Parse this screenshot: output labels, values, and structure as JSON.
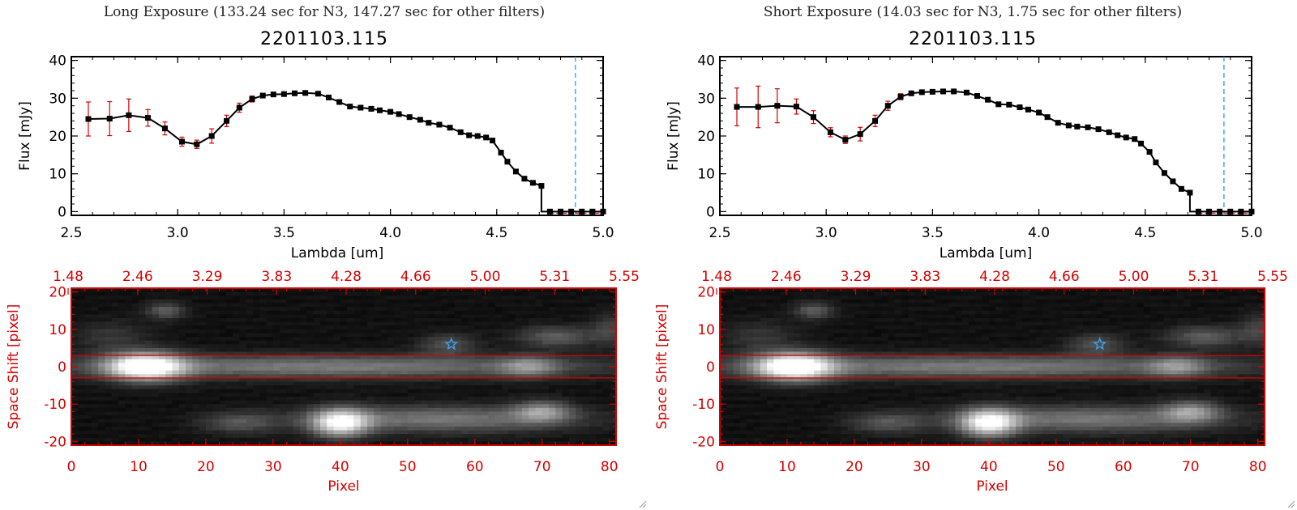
{
  "panels": [
    {
      "title": "Long Exposure (133.24 sec for N3, 147.27 sec for other filters)",
      "object_id": "2201103.115"
    },
    {
      "title": "Short Exposure (14.03 sec for N3, 1.75 sec for other filters)",
      "object_id": "2201103.115"
    }
  ],
  "colors": {
    "spectrum_line": "#000000",
    "error_bar": "#d40000",
    "marker": "#000000",
    "dashed_line": "#3aa0f0",
    "image_axes": "#d40000",
    "star_marker": "#3aa0f0"
  },
  "chart_data": [
    {
      "type": "line",
      "title": "2201103.115",
      "xlabel": "Lambda [um]",
      "ylabel": "Flux [mJy]",
      "xlim": [
        2.5,
        5.0
      ],
      "ylim": [
        -1,
        41
      ],
      "x_ticks": [
        "2.5",
        "3.0",
        "3.5",
        "4.0",
        "4.5",
        "5.0"
      ],
      "y_ticks": [
        "0",
        "10",
        "20",
        "30",
        "40"
      ],
      "vline_x": 4.87,
      "series": [
        {
          "x": [
            2.58,
            2.68,
            2.77,
            2.86,
            2.94,
            3.02,
            3.09,
            3.16,
            3.23,
            3.29,
            3.35,
            3.4,
            3.45,
            3.5,
            3.55,
            3.6,
            3.66,
            3.71,
            3.76,
            3.81,
            3.86,
            3.91,
            3.95,
            4.0,
            4.04,
            4.09,
            4.14,
            4.18,
            4.23,
            4.28,
            4.33,
            4.37,
            4.41,
            4.45,
            4.48,
            4.52,
            4.55,
            4.59,
            4.63,
            4.67,
            4.71,
            4.75,
            4.8,
            4.85,
            4.9,
            4.95,
            5.0
          ],
          "y": [
            24.5,
            24.6,
            25.5,
            24.8,
            22.0,
            18.5,
            17.8,
            20.0,
            24.0,
            27.5,
            29.8,
            30.7,
            31.0,
            31.1,
            31.3,
            31.4,
            31.2,
            30.2,
            29.0,
            27.8,
            27.5,
            27.2,
            26.8,
            26.4,
            25.8,
            25.0,
            24.3,
            23.5,
            23.0,
            22.2,
            21.0,
            20.2,
            20.0,
            19.6,
            18.8,
            15.6,
            13.2,
            10.6,
            8.7,
            7.6,
            6.8,
            0,
            0,
            0,
            0,
            0,
            0
          ],
          "err": [
            4.5,
            4.5,
            4.3,
            2.2,
            1.7,
            1.2,
            1.1,
            1.9,
            1.5,
            1.2,
            0.8,
            0.5,
            0.4,
            0.4,
            0.4,
            0.4,
            0.4,
            0.4,
            0.4,
            0.4,
            0.4,
            0.4,
            0.4,
            0.4,
            0.4,
            0.4,
            0.4,
            0.4,
            0.4,
            0.4,
            0.4,
            0.4,
            0.4,
            0.4,
            0.4,
            0.4,
            0.4,
            0.4,
            0.4,
            0.4,
            0.4,
            0.3,
            0.3,
            0.3,
            0.3,
            0.3,
            0.3
          ]
        }
      ]
    },
    {
      "type": "heatmap",
      "xlabel": "Pixel",
      "ylabel": "Space Shift [pixel]",
      "xlim": [
        0,
        81
      ],
      "ylim": [
        -21,
        21
      ],
      "x_ticks": [
        "0",
        "10",
        "20",
        "30",
        "40",
        "50",
        "60",
        "70",
        "80"
      ],
      "y_ticks": [
        "-20",
        "-10",
        "0",
        "10",
        "20"
      ],
      "top_axis_ticks": [
        "1.48",
        "2.46",
        "3.29",
        "3.83",
        "4.28",
        "4.66",
        "5.00",
        "5.31",
        "5.55"
      ],
      "aperture_y": [
        -3,
        3
      ],
      "star_position": [
        56.5,
        6
      ],
      "sources": [
        {
          "x": 11,
          "y": 0,
          "sx": 4,
          "sy": 2.6,
          "amp": 1.0
        },
        {
          "x": 38,
          "y": 0,
          "sx": 28,
          "sy": 2.2,
          "amp": 0.42
        },
        {
          "x": 40,
          "y": -15,
          "sx": 3,
          "sy": 2.6,
          "amp": 0.85
        },
        {
          "x": 55,
          "y": -14,
          "sx": 14,
          "sy": 2.5,
          "amp": 0.4
        },
        {
          "x": 70,
          "y": -12,
          "sx": 3,
          "sy": 2,
          "amp": 0.45
        },
        {
          "x": 68,
          "y": 0,
          "sx": 3,
          "sy": 2,
          "amp": 0.35
        },
        {
          "x": 14,
          "y": 15,
          "sx": 2,
          "sy": 1.6,
          "amp": 0.3
        },
        {
          "x": 72,
          "y": 8,
          "sx": 4,
          "sy": 2,
          "amp": 0.3
        },
        {
          "x": 56,
          "y": 6,
          "sx": 3,
          "sy": 2,
          "amp": 0.25
        },
        {
          "x": 25,
          "y": -15,
          "sx": 4,
          "sy": 2,
          "amp": 0.25
        },
        {
          "x": 6,
          "y": 8,
          "sx": 4,
          "sy": 3,
          "amp": 0.15
        },
        {
          "x": 80,
          "y": 10,
          "sx": 2,
          "sy": 3,
          "amp": 0.2
        }
      ]
    },
    {
      "type": "line",
      "title": "2201103.115",
      "xlabel": "Lambda [um]",
      "ylabel": "Flux [mJy]",
      "xlim": [
        2.5,
        5.0
      ],
      "ylim": [
        -1,
        41
      ],
      "x_ticks": [
        "2.5",
        "3.0",
        "3.5",
        "4.0",
        "4.5",
        "5.0"
      ],
      "y_ticks": [
        "0",
        "10",
        "20",
        "30",
        "40"
      ],
      "vline_x": 4.87,
      "series": [
        {
          "x": [
            2.58,
            2.68,
            2.77,
            2.86,
            2.94,
            3.02,
            3.09,
            3.16,
            3.23,
            3.29,
            3.35,
            3.4,
            3.45,
            3.5,
            3.55,
            3.6,
            3.66,
            3.71,
            3.76,
            3.81,
            3.86,
            3.91,
            3.95,
            4.0,
            4.04,
            4.09,
            4.14,
            4.18,
            4.23,
            4.28,
            4.33,
            4.37,
            4.41,
            4.45,
            4.48,
            4.52,
            4.55,
            4.59,
            4.63,
            4.67,
            4.71,
            4.75,
            4.8,
            4.85,
            4.9,
            4.95,
            5.0
          ],
          "y": [
            27.7,
            27.7,
            28.0,
            27.8,
            25.0,
            21.0,
            19.0,
            20.5,
            24.0,
            28.0,
            30.4,
            31.3,
            31.6,
            31.7,
            31.8,
            31.8,
            31.5,
            30.6,
            29.6,
            28.4,
            28.3,
            27.6,
            27.0,
            26.2,
            25.0,
            23.5,
            22.8,
            22.5,
            22.3,
            21.8,
            21.0,
            20.2,
            19.6,
            19.2,
            18.0,
            15.8,
            13.0,
            10.2,
            8.0,
            6.0,
            5.0,
            0,
            0,
            0,
            0,
            0,
            0
          ],
          "err": [
            5.0,
            5.5,
            4.5,
            2.0,
            1.7,
            1.2,
            1.0,
            1.8,
            1.5,
            1.2,
            0.8,
            0.5,
            0.4,
            0.4,
            0.4,
            0.4,
            0.4,
            0.4,
            0.4,
            0.4,
            0.4,
            0.4,
            0.4,
            0.4,
            0.4,
            0.4,
            0.4,
            0.4,
            0.4,
            0.4,
            0.4,
            0.4,
            0.4,
            0.4,
            0.4,
            0.4,
            0.4,
            0.4,
            0.4,
            0.4,
            0.4,
            0.3,
            0.3,
            0.3,
            0.3,
            0.3,
            0.3
          ]
        }
      ]
    },
    {
      "type": "heatmap",
      "xlabel": "Pixel",
      "ylabel": "Space Shift [pixel]",
      "xlim": [
        0,
        81
      ],
      "ylim": [
        -21,
        21
      ],
      "x_ticks": [
        "0",
        "10",
        "20",
        "30",
        "40",
        "50",
        "60",
        "70",
        "80"
      ],
      "y_ticks": [
        "-20",
        "-10",
        "0",
        "10",
        "20"
      ],
      "top_axis_ticks": [
        "1.48",
        "2.46",
        "3.29",
        "3.83",
        "4.28",
        "4.66",
        "5.00",
        "5.31",
        "5.55"
      ],
      "aperture_y": [
        -3,
        3
      ],
      "star_position": [
        56.5,
        6
      ],
      "sources": [
        {
          "x": 11,
          "y": 0,
          "sx": 4,
          "sy": 2.6,
          "amp": 1.0
        },
        {
          "x": 38,
          "y": 0,
          "sx": 28,
          "sy": 2.2,
          "amp": 0.42
        },
        {
          "x": 40,
          "y": -15,
          "sx": 3,
          "sy": 2.6,
          "amp": 0.85
        },
        {
          "x": 55,
          "y": -14,
          "sx": 14,
          "sy": 2.5,
          "amp": 0.4
        },
        {
          "x": 70,
          "y": -12,
          "sx": 3,
          "sy": 2,
          "amp": 0.45
        },
        {
          "x": 68,
          "y": 0,
          "sx": 3,
          "sy": 2,
          "amp": 0.35
        },
        {
          "x": 14,
          "y": 15,
          "sx": 2,
          "sy": 1.6,
          "amp": 0.3
        },
        {
          "x": 72,
          "y": 8,
          "sx": 4,
          "sy": 2,
          "amp": 0.3
        },
        {
          "x": 56,
          "y": 6,
          "sx": 3,
          "sy": 2,
          "amp": 0.25
        },
        {
          "x": 25,
          "y": -15,
          "sx": 4,
          "sy": 2,
          "amp": 0.25
        },
        {
          "x": 6,
          "y": 8,
          "sx": 4,
          "sy": 3,
          "amp": 0.15
        },
        {
          "x": 80,
          "y": 10,
          "sx": 2,
          "sy": 3,
          "amp": 0.2
        }
      ]
    }
  ]
}
